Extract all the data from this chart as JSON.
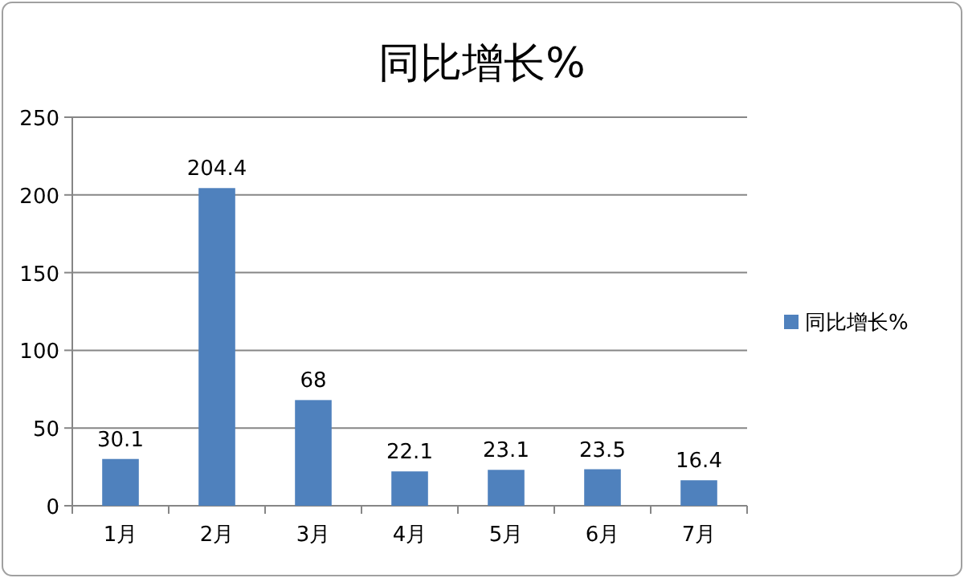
{
  "chart_data": {
    "type": "bar",
    "title": "同比增长%",
    "categories": [
      "1月",
      "2月",
      "3月",
      "4月",
      "5月",
      "6月",
      "7月"
    ],
    "series": [
      {
        "name": "同比增长%",
        "color": "#4f81bd",
        "values": [
          30.1,
          204.4,
          68,
          22.1,
          23.1,
          23.5,
          16.4
        ]
      }
    ],
    "ylim": [
      0,
      250
    ],
    "yticks": [
      0,
      50,
      100,
      150,
      200,
      250
    ],
    "grid": "y",
    "legend": "right",
    "data_labels": true
  }
}
